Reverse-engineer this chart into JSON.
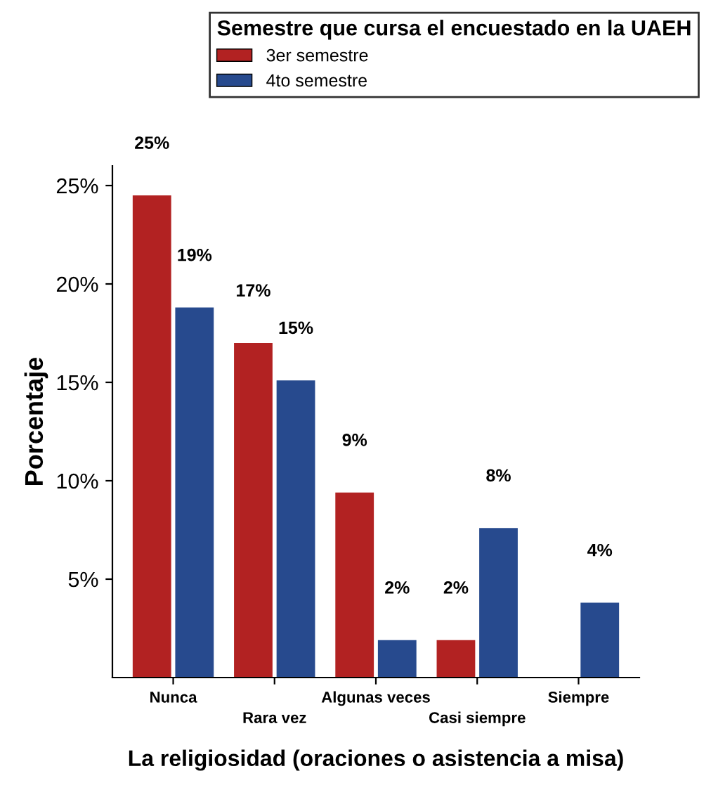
{
  "chart_data": {
    "type": "bar",
    "legend_title": "Semestre que cursa el encuestado en la UAEH",
    "xlabel": "La religiosidad (oraciones o asistencia a misa)",
    "ylabel": "Porcentaje",
    "categories": [
      "Nunca",
      "Rara vez",
      "Algunas veces",
      "Casi siempre",
      "Siempre"
    ],
    "series": [
      {
        "name": "3er semestre",
        "color": "#b22222",
        "values": [
          24.5,
          17.0,
          9.4,
          1.9,
          null
        ],
        "value_labels": [
          "25%",
          "17%",
          "9%",
          "2%",
          null
        ]
      },
      {
        "name": "4to semestre",
        "color": "#274a8e",
        "values": [
          18.8,
          15.1,
          1.9,
          7.6,
          3.8
        ],
        "value_labels": [
          "19%",
          "15%",
          "2%",
          "8%",
          "4%"
        ]
      }
    ],
    "ylim": [
      0,
      26
    ],
    "yticks": [
      {
        "value": 5,
        "label": "5%"
      },
      {
        "value": 10,
        "label": "10%"
      },
      {
        "value": 15,
        "label": "15%"
      },
      {
        "value": 20,
        "label": "20%"
      },
      {
        "value": 25,
        "label": "25%"
      }
    ],
    "grid": false,
    "legend": "top"
  }
}
